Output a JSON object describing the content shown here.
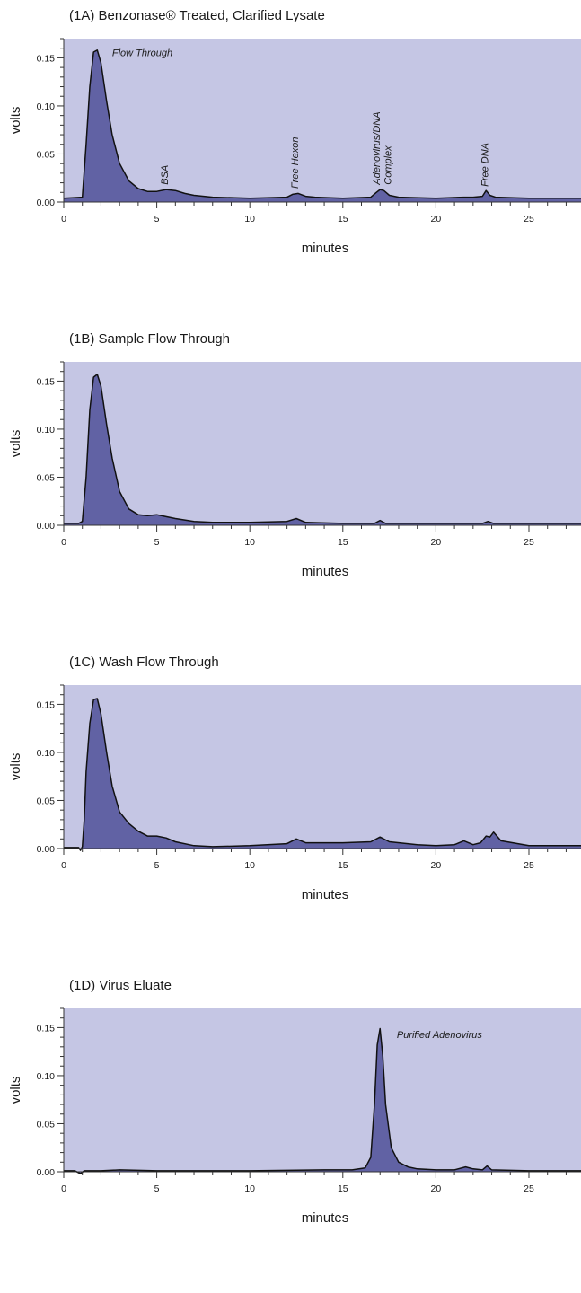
{
  "chart_data": [
    {
      "type": "area",
      "title": "(1A) Benzonase® Treated, Clarified Lysate",
      "xlabel": "minutes",
      "ylabel": "volts",
      "xlim": [
        0,
        27.8
      ],
      "ylim": [
        0,
        0.17
      ],
      "xticks": [
        0,
        5,
        10,
        15,
        20,
        25
      ],
      "yticks": [
        0.0,
        0.05,
        0.1,
        0.15
      ],
      "ytick_labels": [
        "0.00",
        "0.05",
        "0.10",
        "0.15"
      ],
      "grid": false,
      "colors": {
        "plot_bg": "#c5c6e4",
        "fill": "#6162a4",
        "line": "#111111"
      },
      "series": [
        {
          "x": [
            0,
            1.0,
            1.2,
            1.4,
            1.6,
            1.8,
            2.0,
            2.3,
            2.6,
            3.0,
            3.5,
            4.0,
            4.5,
            5.0,
            5.5,
            6.0,
            6.5,
            7.0,
            8.0,
            10.0,
            12.0,
            12.3,
            12.6,
            13.0,
            13.5,
            15.0,
            16.5,
            16.8,
            17.0,
            17.2,
            17.5,
            18.0,
            20.0,
            21.5,
            22.0,
            22.5,
            22.7,
            22.9,
            23.2,
            25.0,
            27.8
          ],
          "y": [
            0.004,
            0.005,
            0.06,
            0.12,
            0.156,
            0.158,
            0.145,
            0.105,
            0.07,
            0.04,
            0.022,
            0.014,
            0.011,
            0.011,
            0.013,
            0.012,
            0.009,
            0.007,
            0.005,
            0.004,
            0.005,
            0.008,
            0.009,
            0.006,
            0.005,
            0.004,
            0.005,
            0.01,
            0.013,
            0.012,
            0.007,
            0.005,
            0.004,
            0.005,
            0.005,
            0.006,
            0.012,
            0.007,
            0.005,
            0.004,
            0.004
          ]
        }
      ],
      "annotations": [
        {
          "text": "Flow Through",
          "x": 2.6,
          "y": 0.152,
          "rotate": false
        },
        {
          "text": "BSA",
          "x": 5.6,
          "y": 0.018,
          "rotate": true
        },
        {
          "text": "Free Hexon",
          "x": 12.6,
          "y": 0.014,
          "rotate": true
        },
        {
          "text": "Adenovirus/DNA",
          "x": 17.0,
          "y": 0.018,
          "rotate": true
        },
        {
          "text": "Complex",
          "x": 17.6,
          "y": 0.018,
          "rotate": true
        },
        {
          "text": "Free DNA",
          "x": 22.8,
          "y": 0.016,
          "rotate": true
        }
      ]
    },
    {
      "type": "area",
      "title": "(1B) Sample Flow Through",
      "xlabel": "minutes",
      "ylabel": "volts",
      "xlim": [
        0,
        27.8
      ],
      "ylim": [
        0,
        0.17
      ],
      "xticks": [
        0,
        5,
        10,
        15,
        20,
        25
      ],
      "yticks": [
        0.0,
        0.05,
        0.1,
        0.15
      ],
      "ytick_labels": [
        "0.00",
        "0.05",
        "0.10",
        "0.15"
      ],
      "grid": false,
      "colors": {
        "plot_bg": "#c5c6e4",
        "fill": "#6162a4",
        "line": "#111111"
      },
      "series": [
        {
          "x": [
            0,
            0.8,
            1.0,
            1.2,
            1.4,
            1.6,
            1.8,
            2.0,
            2.3,
            2.6,
            3.0,
            3.5,
            4.0,
            4.5,
            5.0,
            5.5,
            6.0,
            7.0,
            8.0,
            10.0,
            12.0,
            12.5,
            13.0,
            15.0,
            16.7,
            17.0,
            17.3,
            20.0,
            22.5,
            22.8,
            23.1,
            25.0,
            27.8
          ],
          "y": [
            0.002,
            0.002,
            0.004,
            0.05,
            0.12,
            0.154,
            0.157,
            0.145,
            0.105,
            0.07,
            0.035,
            0.017,
            0.011,
            0.01,
            0.011,
            0.009,
            0.007,
            0.004,
            0.003,
            0.003,
            0.004,
            0.007,
            0.003,
            0.002,
            0.002,
            0.005,
            0.002,
            0.002,
            0.002,
            0.004,
            0.002,
            0.002,
            0.002
          ]
        }
      ],
      "annotations": []
    },
    {
      "type": "area",
      "title": "(1C) Wash Flow Through",
      "xlabel": "minutes",
      "ylabel": "volts",
      "xlim": [
        0,
        27.8
      ],
      "ylim": [
        0,
        0.17
      ],
      "xticks": [
        0,
        5,
        10,
        15,
        20,
        25
      ],
      "yticks": [
        0.0,
        0.05,
        0.1,
        0.15
      ],
      "ytick_labels": [
        "0.00",
        "0.05",
        "0.10",
        "0.15"
      ],
      "grid": false,
      "colors": {
        "plot_bg": "#c5c6e4",
        "fill": "#6162a4",
        "line": "#111111"
      },
      "series": [
        {
          "x": [
            0,
            0.8,
            0.9,
            1.0,
            1.1,
            1.2,
            1.4,
            1.6,
            1.8,
            2.0,
            2.3,
            2.6,
            3.0,
            3.5,
            4.0,
            4.5,
            5.0,
            5.5,
            6.0,
            7.0,
            8.0,
            10.0,
            12.0,
            12.5,
            13.0,
            15.0,
            16.5,
            17.0,
            17.5,
            19.0,
            20.0,
            21.0,
            21.5,
            22.0,
            22.4,
            22.7,
            22.9,
            23.1,
            23.5,
            25.0,
            27.8
          ],
          "y": [
            0.001,
            0.001,
            -0.002,
            0.002,
            0.03,
            0.08,
            0.13,
            0.155,
            0.156,
            0.14,
            0.1,
            0.065,
            0.038,
            0.026,
            0.018,
            0.013,
            0.013,
            0.011,
            0.007,
            0.003,
            0.002,
            0.003,
            0.005,
            0.01,
            0.006,
            0.006,
            0.007,
            0.012,
            0.007,
            0.004,
            0.003,
            0.004,
            0.008,
            0.004,
            0.006,
            0.013,
            0.012,
            0.017,
            0.008,
            0.003,
            0.003
          ]
        }
      ],
      "annotations": []
    },
    {
      "type": "area",
      "title": "(1D) Virus Eluate",
      "xlabel": "minutes",
      "ylabel": "volts",
      "xlim": [
        0,
        27.8
      ],
      "ylim": [
        0,
        0.17
      ],
      "xticks": [
        0,
        5,
        10,
        15,
        20,
        25
      ],
      "yticks": [
        0.0,
        0.05,
        0.1,
        0.15
      ],
      "ytick_labels": [
        "0.00",
        "0.05",
        "0.10",
        "0.15"
      ],
      "grid": false,
      "colors": {
        "plot_bg": "#c5c6e4",
        "fill": "#6162a4",
        "line": "#111111"
      },
      "series": [
        {
          "x": [
            0,
            0.6,
            0.9,
            1.1,
            2.0,
            3.0,
            5.0,
            8.0,
            10.0,
            14.0,
            15.5,
            16.2,
            16.5,
            16.7,
            16.85,
            17.0,
            17.15,
            17.3,
            17.6,
            18.0,
            18.5,
            19.0,
            20.0,
            21.0,
            21.6,
            22.0,
            22.5,
            22.75,
            23.0,
            25.0,
            27.8
          ],
          "y": [
            0.001,
            0.001,
            -0.002,
            0.001,
            0.001,
            0.002,
            0.001,
            0.001,
            0.001,
            0.002,
            0.002,
            0.004,
            0.015,
            0.07,
            0.132,
            0.149,
            0.12,
            0.07,
            0.025,
            0.01,
            0.005,
            0.003,
            0.002,
            0.002,
            0.005,
            0.003,
            0.002,
            0.006,
            0.002,
            0.001,
            0.001
          ]
        }
      ],
      "annotations": [
        {
          "text": "Purified Adenovirus",
          "x": 17.9,
          "y": 0.139,
          "rotate": false
        }
      ]
    }
  ]
}
